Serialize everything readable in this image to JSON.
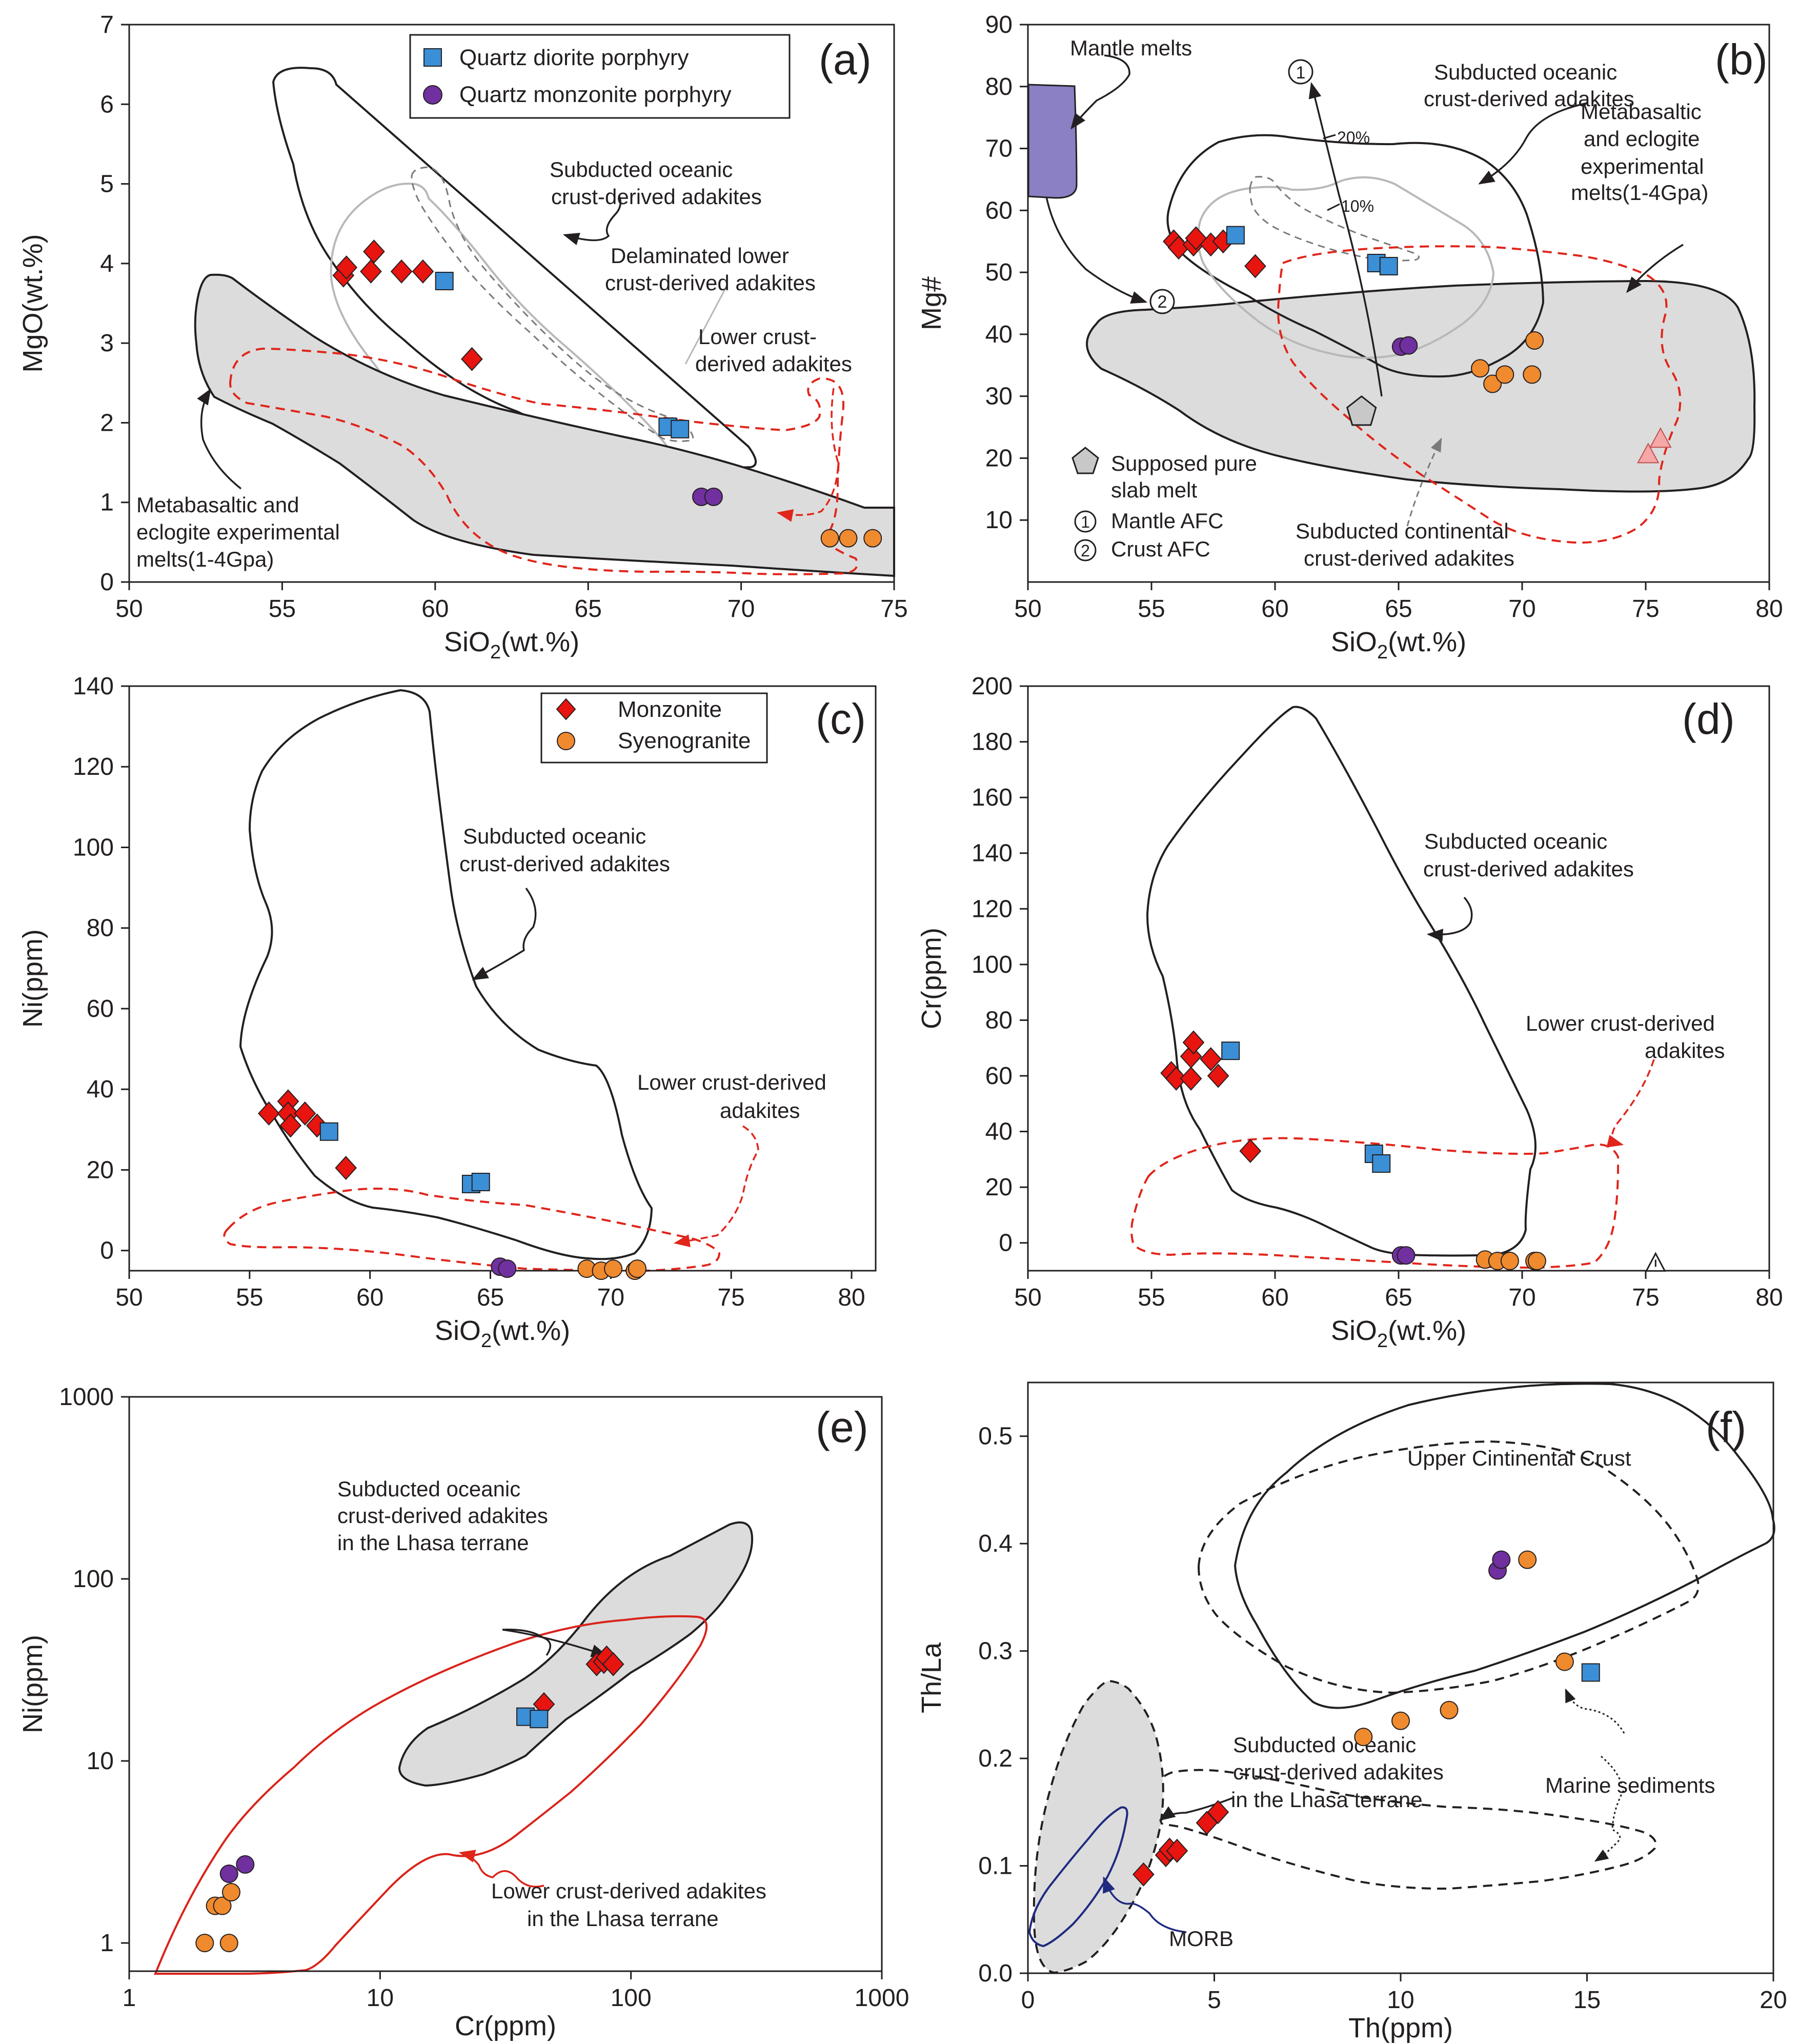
{
  "colors": {
    "quartz_diorite_porphyry": "#3a8fd6",
    "quartz_monzonite_porphyry": "#7030a0",
    "monzonite": "#e8140f",
    "syenogranite": "#f08a2e",
    "mantle_melts_fill": "#8b80c3",
    "pink_triangle": "#f6a7a7",
    "gray_field": "#dcdcdc",
    "morb_line": "#1f2a80"
  },
  "chart_data": [
    {
      "id": "a",
      "type": "scatter",
      "panel_label": "(a)",
      "xlabel_main": "SiO",
      "xlabel_sub": "2",
      "xlabel_unit": "(wt.%)",
      "ylabel": "MgO(wt.%)",
      "xlim": [
        50,
        75
      ],
      "ylim": [
        0,
        7
      ],
      "xticks": [
        50,
        55,
        60,
        65,
        70,
        75
      ],
      "yticks": [
        0,
        1,
        2,
        3,
        4,
        5,
        6,
        7
      ],
      "legend": [
        {
          "label": "Quartz diorite porphyry",
          "marker": "square",
          "color_key": "quartz_diorite_porphyry"
        },
        {
          "label": "Quartz monzonite porphyry",
          "marker": "circle",
          "color_key": "quartz_monzonite_porphyry"
        }
      ],
      "series": [
        {
          "name": "Monzonite",
          "marker": "diamond",
          "color_key": "monzonite",
          "x": [
            57.0,
            57.1,
            57.9,
            58.0,
            58.9,
            59.6,
            61.2
          ],
          "y": [
            3.85,
            3.95,
            3.9,
            4.15,
            3.9,
            3.9,
            2.8
          ]
        },
        {
          "name": "Quartz diorite porphyry",
          "marker": "square",
          "color_key": "quartz_diorite_porphyry",
          "x": [
            60.3,
            67.6,
            68.0
          ],
          "y": [
            3.78,
            1.95,
            1.92
          ]
        },
        {
          "name": "Quartz monzonite porphyry",
          "marker": "circle",
          "color_key": "quartz_monzonite_porphyry",
          "x": [
            68.7,
            69.1
          ],
          "y": [
            1.07,
            1.07
          ]
        },
        {
          "name": "Syenogranite",
          "marker": "circle",
          "color_key": "syenogranite",
          "x": [
            72.9,
            73.5,
            74.3
          ],
          "y": [
            0.55,
            0.55,
            0.55
          ]
        }
      ],
      "annotations": [
        "Subducted oceanic",
        "crust-derived adakites",
        "Delaminated lower",
        "crust-derived adakites",
        "Lower crust-",
        "derived adakites",
        "Metabasaltic and",
        "eclogite experimental",
        "melts(1-4Gpa)"
      ]
    },
    {
      "id": "b",
      "type": "scatter",
      "panel_label": "(b)",
      "xlabel_main": "SiO",
      "xlabel_sub": "2",
      "xlabel_unit": "(wt.%)",
      "ylabel": "Mg#",
      "xlim": [
        50,
        80
      ],
      "ylim": [
        0,
        90
      ],
      "xticks": [
        50,
        55,
        60,
        65,
        70,
        75,
        80
      ],
      "yticks": [
        10,
        20,
        30,
        40,
        50,
        60,
        70,
        80,
        90
      ],
      "series": [
        {
          "name": "Monzonite",
          "marker": "diamond",
          "color_key": "monzonite",
          "x": [
            55.9,
            56.1,
            56.7,
            56.8,
            57.4,
            57.9,
            59.2
          ],
          "y": [
            55,
            54,
            54.5,
            55.5,
            54.5,
            55,
            51
          ]
        },
        {
          "name": "Quartz diorite porphyry",
          "marker": "square",
          "color_key": "quartz_diorite_porphyry",
          "x": [
            58.4,
            64.1,
            64.6
          ],
          "y": [
            56,
            51.5,
            51
          ]
        },
        {
          "name": "Quartz monzonite porphyry",
          "marker": "circle",
          "color_key": "quartz_monzonite_porphyry",
          "x": [
            65.1,
            65.4
          ],
          "y": [
            38,
            38.2
          ]
        },
        {
          "name": "Syenogranite",
          "marker": "circle",
          "color_key": "syenogranite",
          "x": [
            68.3,
            68.8,
            69.3,
            70.4,
            70.5
          ],
          "y": [
            34.5,
            32,
            33.5,
            33.5,
            39
          ]
        },
        {
          "name": "Pink triangles",
          "marker": "triangle",
          "color_key": "pink_triangle",
          "x": [
            75.1,
            75.6
          ],
          "y": [
            20.5,
            23
          ]
        },
        {
          "name": "Supposed pure slab melt",
          "marker": "pentagon",
          "color_key": "gray_field",
          "x": [
            63.5
          ],
          "y": [
            27.5
          ]
        }
      ],
      "legend": [
        {
          "label_lines": [
            "Supposed pure",
            "slab melt"
          ],
          "marker": "pentagon"
        },
        {
          "label": "Mantle AFC",
          "marker": "numbered",
          "num": "1"
        },
        {
          "label": "Crust AFC",
          "marker": "numbered",
          "num": "2"
        }
      ],
      "annotations": [
        "Mantle melts",
        "Subducted oceanic",
        "crust-derived adakites",
        "Metabasaltic",
        "and eclogite",
        "experimental",
        "melts(1-4Gpa)",
        "20%",
        "10%",
        "Subducted continental",
        "crust-derived adakites"
      ]
    },
    {
      "id": "c",
      "type": "scatter",
      "panel_label": "(c)",
      "xlabel_main": "SiO",
      "xlabel_sub": "2",
      "xlabel_unit": "(wt.%)",
      "ylabel": "Ni(ppm)",
      "xlim": [
        50,
        81
      ],
      "ylim": [
        -5,
        140
      ],
      "xticks": [
        50,
        55,
        60,
        65,
        70,
        75,
        80
      ],
      "yticks": [
        0,
        20,
        40,
        60,
        80,
        100,
        120,
        140
      ],
      "legend": [
        {
          "label": "Monzonite",
          "marker": "diamond",
          "color_key": "monzonite"
        },
        {
          "label": "Syenogranite",
          "marker": "circle",
          "color_key": "syenogranite"
        }
      ],
      "series": [
        {
          "name": "Monzonite",
          "marker": "diamond",
          "color_key": "monzonite",
          "x": [
            55.8,
            56.6,
            56.6,
            56.7,
            57.3,
            57.8,
            59.0
          ],
          "y": [
            34,
            37,
            34,
            31,
            34,
            31,
            20.5
          ]
        },
        {
          "name": "Quartz diorite porphyry",
          "marker": "square",
          "color_key": "quartz_diorite_porphyry",
          "x": [
            58.3,
            64.2,
            64.6
          ],
          "y": [
            29.5,
            16.5,
            17
          ]
        },
        {
          "name": "Quartz monzonite porphyry",
          "marker": "circle",
          "color_key": "quartz_monzonite_porphyry",
          "x": [
            65.4,
            65.7
          ],
          "y": [
            -4,
            -4.5
          ]
        },
        {
          "name": "Syenogranite",
          "marker": "circle",
          "color_key": "syenogranite",
          "x": [
            69.0,
            69.6,
            70.1,
            71.0,
            71.1
          ],
          "y": [
            -4.5,
            -5,
            -4.5,
            -5,
            -4.5
          ]
        }
      ],
      "annotations": [
        "Subducted oceanic",
        "crust-derived adakites",
        "Lower crust-derived",
        "adakites"
      ]
    },
    {
      "id": "d",
      "type": "scatter",
      "panel_label": "(d)",
      "xlabel_main": "SiO",
      "xlabel_sub": "2",
      "xlabel_unit": "(wt.%)",
      "ylabel": "Cr(ppm)",
      "xlim": [
        50,
        80
      ],
      "ylim": [
        -10,
        200
      ],
      "xticks": [
        50,
        55,
        60,
        65,
        70,
        75,
        80
      ],
      "yticks": [
        0,
        20,
        40,
        60,
        80,
        100,
        120,
        140,
        160,
        180,
        200
      ],
      "series": [
        {
          "name": "Monzonite",
          "marker": "diamond",
          "color_key": "monzonite",
          "x": [
            55.8,
            56.0,
            56.6,
            56.6,
            56.7,
            57.4,
            57.7,
            59.0
          ],
          "y": [
            61,
            59,
            67,
            59,
            72,
            66,
            60,
            33
          ]
        },
        {
          "name": "Quartz diorite porphyry",
          "marker": "square",
          "color_key": "quartz_diorite_porphyry",
          "x": [
            58.2,
            64.0,
            64.3
          ],
          "y": [
            69,
            32,
            28.5
          ]
        },
        {
          "name": "Quartz monzonite porphyry",
          "marker": "circle",
          "color_key": "quartz_monzonite_porphyry",
          "x": [
            65.1,
            65.3
          ],
          "y": [
            -4.5,
            -4.5
          ]
        },
        {
          "name": "Syenogranite",
          "marker": "circle",
          "color_key": "syenogranite",
          "x": [
            68.5,
            69.0,
            69.5,
            70.5,
            70.6
          ],
          "y": [
            -6,
            -6.5,
            -6.5,
            -6.5,
            -6.5
          ]
        },
        {
          "name": "Open triangle",
          "marker": "triangle-open",
          "color_key": "gray_field",
          "x": [
            75.4
          ],
          "y": [
            -7.5
          ]
        }
      ],
      "annotations": [
        "Subducted oceanic",
        "crust-derived adakites",
        "Lower crust-derived",
        "adakites"
      ]
    },
    {
      "id": "e",
      "type": "scatter",
      "panel_label": "(e)",
      "log_x": true,
      "log_y": true,
      "xlabel": "Cr(ppm)",
      "ylabel": "Ni(ppm)",
      "xlim": [
        1,
        1000
      ],
      "ylim": [
        0.7,
        1000
      ],
      "xticks": [
        1,
        10,
        100,
        1000
      ],
      "yticks": [
        1,
        10,
        100,
        1000
      ],
      "series": [
        {
          "name": "Monzonite",
          "marker": "diamond",
          "color_key": "monzonite",
          "x": [
            45,
            73,
            78,
            80,
            85
          ],
          "y": [
            20.5,
            34,
            35,
            37,
            34
          ]
        },
        {
          "name": "Quartz diorite porphyry",
          "marker": "square",
          "color_key": "quartz_diorite_porphyry",
          "x": [
            38,
            43
          ],
          "y": [
            17.5,
            17
          ]
        },
        {
          "name": "Quartz monzonite porphyry",
          "marker": "circle",
          "color_key": "quartz_monzonite_porphyry",
          "x": [
            2.5,
            2.9
          ],
          "y": [
            2.4,
            2.7
          ]
        },
        {
          "name": "Syenogranite",
          "marker": "circle",
          "color_key": "syenogranite",
          "x": [
            2.0,
            2.2,
            2.35,
            2.5,
            2.55
          ],
          "y": [
            1.0,
            1.6,
            1.6,
            1.0,
            1.9
          ]
        }
      ],
      "annotations": [
        "Subducted oceanic",
        "crust-derived adakites",
        "in the Lhasa terrane",
        "Lower crust-derived adakites",
        "in the Lhasa terrane"
      ]
    },
    {
      "id": "f",
      "type": "scatter",
      "panel_label": "(f)",
      "xlabel": "Th(ppm)",
      "ylabel": "Th/La",
      "xlim": [
        0,
        20
      ],
      "ylim": [
        0,
        0.55
      ],
      "xticks": [
        0,
        5,
        10,
        15,
        20
      ],
      "yticks": [
        0.0,
        0.1,
        0.2,
        0.3,
        0.4,
        0.5
      ],
      "ytick_labels": [
        "0.0",
        "0.1",
        "0.2",
        "0.3",
        "0.4",
        "0.5"
      ],
      "series": [
        {
          "name": "Monzonite",
          "marker": "diamond",
          "color_key": "monzonite",
          "x": [
            3.1,
            3.7,
            3.8,
            4.0,
            4.8,
            5.1
          ],
          "y": [
            0.092,
            0.11,
            0.115,
            0.114,
            0.14,
            0.15
          ]
        },
        {
          "name": "Quartz diorite porphyry",
          "marker": "square",
          "color_key": "quartz_diorite_porphyry",
          "x": [
            15.1
          ],
          "y": [
            0.28
          ]
        },
        {
          "name": "Quartz monzonite porphyry",
          "marker": "circle",
          "color_key": "quartz_monzonite_porphyry",
          "x": [
            12.6,
            12.7
          ],
          "y": [
            0.375,
            0.385
          ]
        },
        {
          "name": "Syenogranite",
          "marker": "circle",
          "color_key": "syenogranite",
          "x": [
            9.0,
            10.0,
            11.3,
            13.4,
            14.4
          ],
          "y": [
            0.22,
            0.235,
            0.245,
            0.385,
            0.29
          ]
        }
      ],
      "annotations": [
        "Upper Cintinental Crust",
        "Subducted oceanic",
        "crust-derived adakites",
        "in the Lhasa terrane",
        "Marine sediments",
        "MORB"
      ]
    }
  ]
}
